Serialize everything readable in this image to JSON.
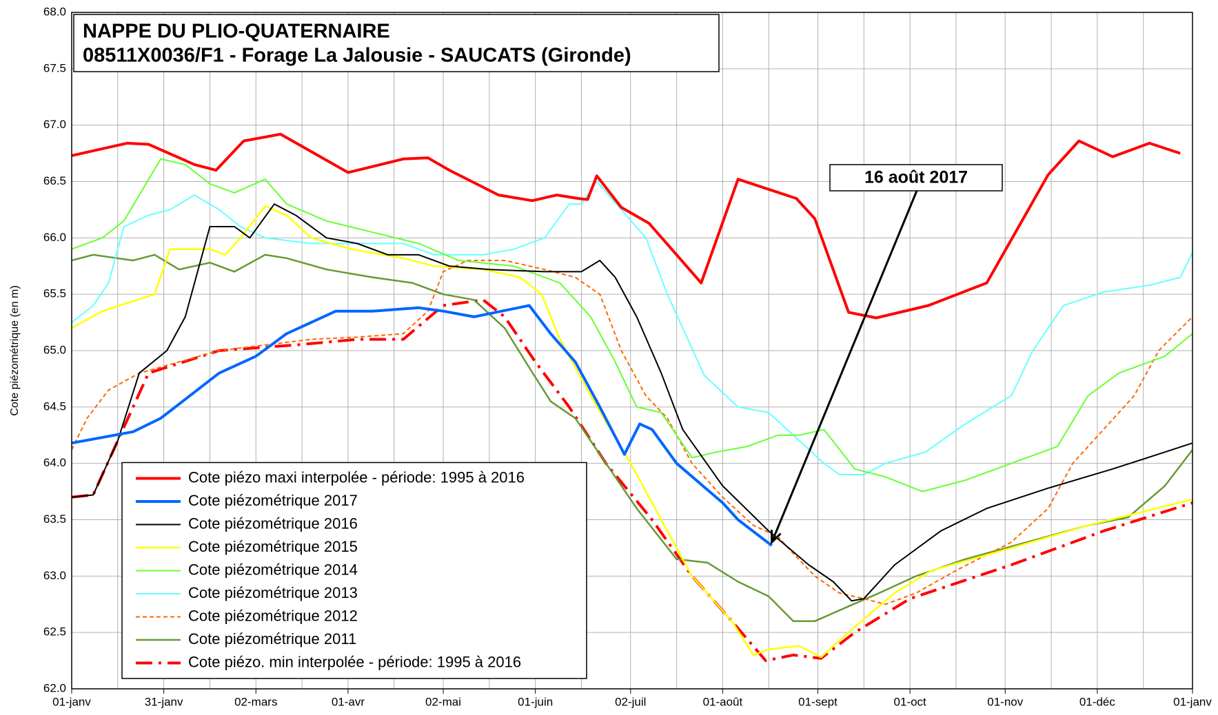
{
  "chart_data": {
    "type": "line",
    "title": [
      "NAPPE DU PLIO-QUATERNAIRE",
      "08511X0036/F1 - Forage La Jalousie - SAUCATS (Gironde)"
    ],
    "ylabel": "Cote piézométrique (en m)",
    "annotation": "16 août 2017",
    "annotation_x": 228,
    "annotation_y": 63.3,
    "xlim": [
      0,
      365
    ],
    "ylim": [
      62,
      68
    ],
    "xticks": [
      {
        "value": 0,
        "label": "01-janv"
      },
      {
        "value": 30,
        "label": "31-janv"
      },
      {
        "value": 60,
        "label": "02-mars"
      },
      {
        "value": 90,
        "label": "01-avr"
      },
      {
        "value": 121,
        "label": "02-mai"
      },
      {
        "value": 151,
        "label": "01-juin"
      },
      {
        "value": 182,
        "label": "02-juil"
      },
      {
        "value": 212,
        "label": "01-août"
      },
      {
        "value": 243,
        "label": "01-sept"
      },
      {
        "value": 273,
        "label": "01-oct"
      },
      {
        "value": 304,
        "label": "01-nov"
      },
      {
        "value": 334,
        "label": "01-déc"
      },
      {
        "value": 365,
        "label": "01-janv"
      }
    ],
    "xminor_ticks": [
      15,
      45,
      75,
      105,
      136,
      166,
      197,
      227,
      258,
      288,
      319,
      349
    ],
    "yticks": [
      {
        "value": 62,
        "label": "62.0"
      },
      {
        "value": 62.5,
        "label": "62.5"
      },
      {
        "value": 63,
        "label": "63.0"
      },
      {
        "value": 63.5,
        "label": "63.5"
      },
      {
        "value": 64,
        "label": "64.0"
      },
      {
        "value": 64.5,
        "label": "64.5"
      },
      {
        "value": 65,
        "label": "65.0"
      },
      {
        "value": 65.5,
        "label": "65.5"
      },
      {
        "value": 66,
        "label": "66.0"
      },
      {
        "value": 66.5,
        "label": "66.5"
      },
      {
        "value": 67,
        "label": "67.0"
      },
      {
        "value": 67.5,
        "label": "67.5"
      },
      {
        "value": 68,
        "label": "68.0"
      }
    ],
    "grid": true,
    "legend": "lower left",
    "series": [
      {
        "name": "Cote piézo maxi interpolée - période: 1995 à 2016",
        "color": "#ff0000",
        "width": 4,
        "x": [
          0,
          18,
          25,
          40,
          47,
          56,
          68,
          90,
          108,
          116,
          123,
          139,
          150,
          158,
          165,
          168,
          171,
          179,
          188,
          197,
          205,
          217,
          236,
          242,
          253,
          262,
          279,
          298,
          318,
          328,
          339,
          351,
          361
        ],
        "values": [
          66.73,
          66.84,
          66.83,
          66.65,
          66.6,
          66.86,
          66.92,
          66.58,
          66.7,
          66.71,
          66.6,
          66.38,
          66.33,
          66.38,
          66.35,
          66.34,
          66.55,
          66.27,
          66.13,
          65.85,
          65.6,
          66.52,
          66.35,
          66.17,
          65.34,
          65.29,
          65.4,
          65.6,
          66.56,
          66.86,
          66.72,
          66.84,
          66.75
        ]
      },
      {
        "name": "Cote piézométrique 2017",
        "color": "#0066ff",
        "width": 4,
        "x": [
          0,
          20,
          29,
          48,
          60,
          70,
          86,
          98,
          113,
          121,
          131,
          149,
          156,
          164,
          172,
          180,
          185,
          189,
          197,
          212,
          217,
          228
        ],
        "values": [
          64.18,
          64.28,
          64.4,
          64.8,
          64.95,
          65.15,
          65.35,
          65.35,
          65.38,
          65.35,
          65.3,
          65.4,
          65.15,
          64.9,
          64.5,
          64.08,
          64.35,
          64.3,
          64.0,
          63.65,
          63.5,
          63.27
        ]
      },
      {
        "name": "Cote piézométrique 2016",
        "color": "#000000",
        "width": 2,
        "x": [
          0,
          7,
          15,
          22,
          31,
          37,
          45,
          53,
          58,
          66,
          73,
          83,
          93,
          103,
          113,
          123,
          136,
          154,
          166,
          172,
          177,
          184,
          192,
          199,
          212,
          227,
          240,
          248,
          254,
          258,
          268,
          283,
          298,
          318,
          339,
          356,
          365
        ],
        "values": [
          63.7,
          63.72,
          64.2,
          64.8,
          65.0,
          65.3,
          66.1,
          66.1,
          66.0,
          66.3,
          66.2,
          66.0,
          65.95,
          65.85,
          65.85,
          65.75,
          65.72,
          65.7,
          65.7,
          65.8,
          65.65,
          65.3,
          64.8,
          64.3,
          63.8,
          63.4,
          63.1,
          62.95,
          62.78,
          62.8,
          63.1,
          63.4,
          63.6,
          63.78,
          63.95,
          64.1,
          64.18
        ]
      },
      {
        "name": "Cote piézométrique 2015",
        "color": "#ffff00",
        "width": 2.5,
        "x": [
          0,
          10,
          27,
          32,
          45,
          50,
          55,
          63,
          70,
          78,
          91,
          108,
          118,
          134,
          146,
          153,
          159,
          169,
          182,
          192,
          202,
          215,
          222,
          227,
          237,
          244,
          255,
          268,
          280,
          306,
          331,
          365
        ],
        "values": [
          65.2,
          65.35,
          65.5,
          65.9,
          65.9,
          65.85,
          66.0,
          66.28,
          66.2,
          66.0,
          65.9,
          65.82,
          65.75,
          65.72,
          65.65,
          65.5,
          65.1,
          64.6,
          64.0,
          63.5,
          63.0,
          62.6,
          62.3,
          62.35,
          62.38,
          62.28,
          62.55,
          62.85,
          63.05,
          63.25,
          63.45,
          63.68
        ]
      },
      {
        "name": "Cote piézométrique 2014",
        "color": "#66ff33",
        "width": 2,
        "x": [
          0,
          10,
          17,
          29,
          37,
          45,
          53,
          63,
          70,
          83,
          98,
          113,
          126,
          144,
          159,
          169,
          177,
          184,
          192,
          202,
          210,
          220,
          230,
          237,
          245,
          255,
          265,
          277,
          291,
          306,
          321,
          331,
          341,
          356,
          365
        ],
        "values": [
          65.9,
          66.0,
          66.15,
          66.7,
          66.65,
          66.48,
          66.4,
          66.52,
          66.3,
          66.15,
          66.05,
          65.95,
          65.8,
          65.75,
          65.6,
          65.3,
          64.9,
          64.5,
          64.45,
          64.05,
          64.1,
          64.15,
          64.25,
          64.25,
          64.3,
          63.95,
          63.88,
          63.75,
          63.85,
          64.0,
          64.15,
          64.6,
          64.8,
          64.95,
          65.15
        ]
      },
      {
        "name": "Cote piézométrique 2013",
        "color": "#66ffff",
        "width": 2,
        "x": [
          0,
          7,
          12,
          17,
          25,
          32,
          40,
          48,
          55,
          63,
          78,
          93,
          108,
          118,
          134,
          144,
          154,
          162,
          166,
          171,
          179,
          187,
          194,
          206,
          217,
          227,
          237,
          245,
          250,
          258,
          265,
          278,
          291,
          306,
          313,
          323,
          336,
          351,
          361,
          365
        ],
        "values": [
          65.25,
          65.4,
          65.6,
          66.1,
          66.2,
          66.25,
          66.38,
          66.25,
          66.1,
          66.0,
          65.95,
          65.95,
          65.95,
          65.85,
          65.85,
          65.9,
          66.0,
          66.3,
          66.3,
          66.5,
          66.25,
          66.0,
          65.5,
          64.78,
          64.5,
          64.45,
          64.2,
          64.0,
          63.9,
          63.9,
          64.0,
          64.1,
          64.35,
          64.6,
          65.0,
          65.4,
          65.52,
          65.58,
          65.65,
          65.87
        ]
      },
      {
        "name": "Cote piézométrique 2012",
        "color": "#ff6600",
        "width": 2,
        "dash": "6,4",
        "x": [
          0,
          5,
          12,
          22,
          35,
          48,
          63,
          78,
          93,
          108,
          116,
          121,
          129,
          141,
          154,
          164,
          172,
          179,
          187,
          194,
          202,
          212,
          222,
          230,
          235,
          242,
          250,
          258,
          265,
          275,
          288,
          306,
          318,
          326,
          336,
          346,
          354,
          365
        ],
        "values": [
          64.12,
          64.4,
          64.65,
          64.8,
          64.9,
          65.0,
          65.05,
          65.1,
          65.12,
          65.15,
          65.35,
          65.7,
          65.8,
          65.8,
          65.72,
          65.65,
          65.5,
          65.0,
          64.6,
          64.4,
          64.0,
          63.7,
          63.45,
          63.35,
          63.2,
          63.0,
          62.85,
          62.8,
          62.75,
          62.85,
          63.05,
          63.3,
          63.6,
          64.0,
          64.3,
          64.6,
          65.0,
          65.3
        ]
      },
      {
        "name": "Cote piézométrique 2011",
        "color": "#669933",
        "width": 2.5,
        "x": [
          0,
          7,
          20,
          27,
          35,
          45,
          53,
          63,
          70,
          83,
          98,
          111,
          121,
          131,
          141,
          149,
          156,
          164,
          174,
          184,
          197,
          207,
          217,
          227,
          235,
          242,
          252,
          263,
          275,
          291,
          311,
          331,
          344,
          356,
          365
        ],
        "values": [
          65.8,
          65.85,
          65.8,
          65.85,
          65.72,
          65.78,
          65.7,
          65.85,
          65.82,
          65.72,
          65.65,
          65.6,
          65.5,
          65.45,
          65.2,
          64.85,
          64.55,
          64.4,
          64.0,
          63.6,
          63.15,
          63.12,
          62.95,
          62.82,
          62.6,
          62.6,
          62.72,
          62.85,
          63.0,
          63.15,
          63.3,
          63.45,
          63.52,
          63.8,
          64.12
        ]
      },
      {
        "name": "Cote piézo. min interpolée - période: 1995 à 2016",
        "color": "#ff0000",
        "width": 4,
        "dash": "24,9,4,9",
        "x": [
          0,
          7,
          15,
          25,
          48,
          73,
          93,
          108,
          121,
          134,
          141,
          151,
          162,
          174,
          189,
          202,
          215,
          226,
          235,
          244,
          255,
          273,
          306,
          336,
          365
        ],
        "values": [
          63.7,
          63.72,
          64.2,
          64.8,
          65.0,
          65.05,
          65.1,
          65.1,
          65.4,
          65.45,
          65.3,
          64.9,
          64.5,
          64.0,
          63.5,
          63.0,
          62.6,
          62.25,
          62.3,
          62.27,
          62.5,
          62.8,
          63.1,
          63.4,
          63.65
        ]
      }
    ]
  }
}
